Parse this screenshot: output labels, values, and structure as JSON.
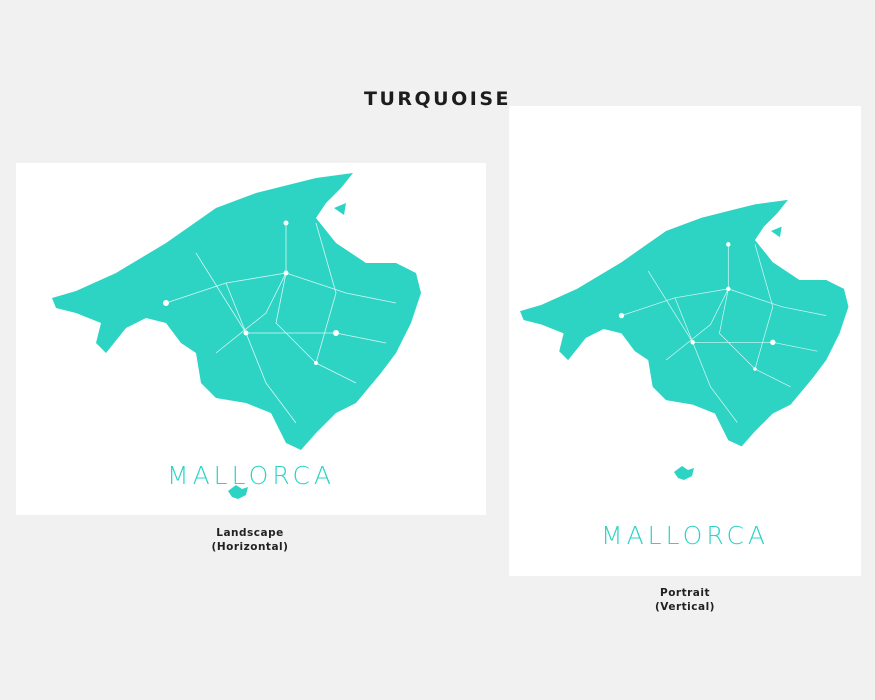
{
  "title": "TURQUOISE",
  "accent_color": "#2dd4c4",
  "landscape": {
    "map_label": "MALLORCA",
    "caption_line1": "Landscape",
    "caption_line2": "(Horizontal)"
  },
  "portrait": {
    "map_label": "MALLORCA",
    "caption_line1": "Portrait",
    "caption_line2": "(Vertical)"
  }
}
